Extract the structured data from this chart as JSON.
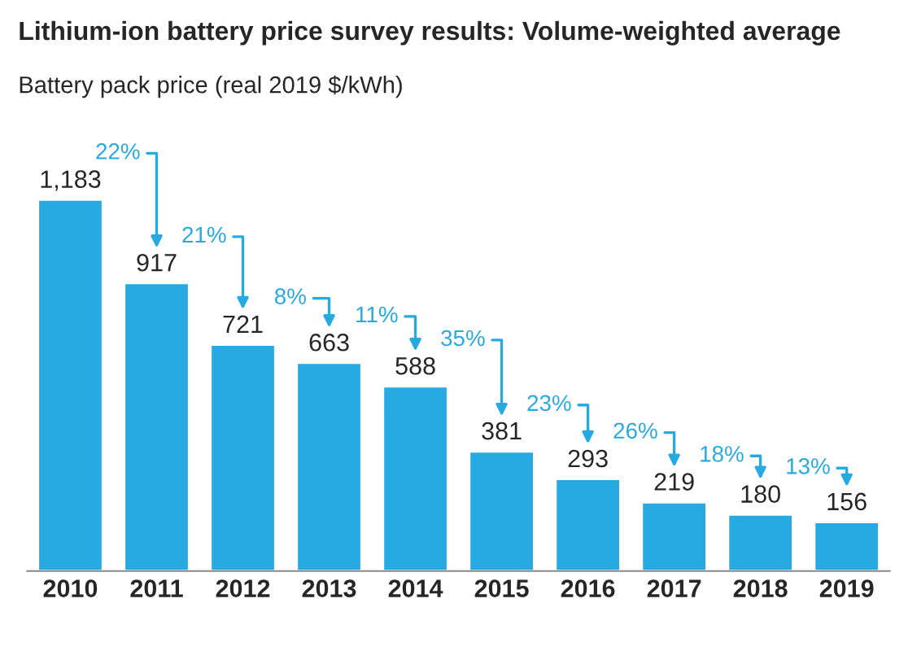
{
  "chart_data": {
    "type": "bar",
    "title": "Lithium-ion battery price survey results: Volume-weighted average",
    "subtitle": "Battery pack price (real 2019 $/kWh)",
    "categories": [
      "2010",
      "2011",
      "2012",
      "2013",
      "2014",
      "2015",
      "2016",
      "2017",
      "2018",
      "2019"
    ],
    "values": [
      1183,
      917,
      721,
      663,
      588,
      381,
      293,
      219,
      180,
      156
    ],
    "color": "#27a9e1",
    "value_labels": [
      "1,183",
      "917",
      "721",
      "663",
      "588",
      "381",
      "293",
      "219",
      "180",
      "156"
    ],
    "annotations": [
      "22%",
      "21%",
      "8%",
      "11%",
      "35%",
      "23%",
      "26%",
      "18%",
      "13%"
    ]
  }
}
